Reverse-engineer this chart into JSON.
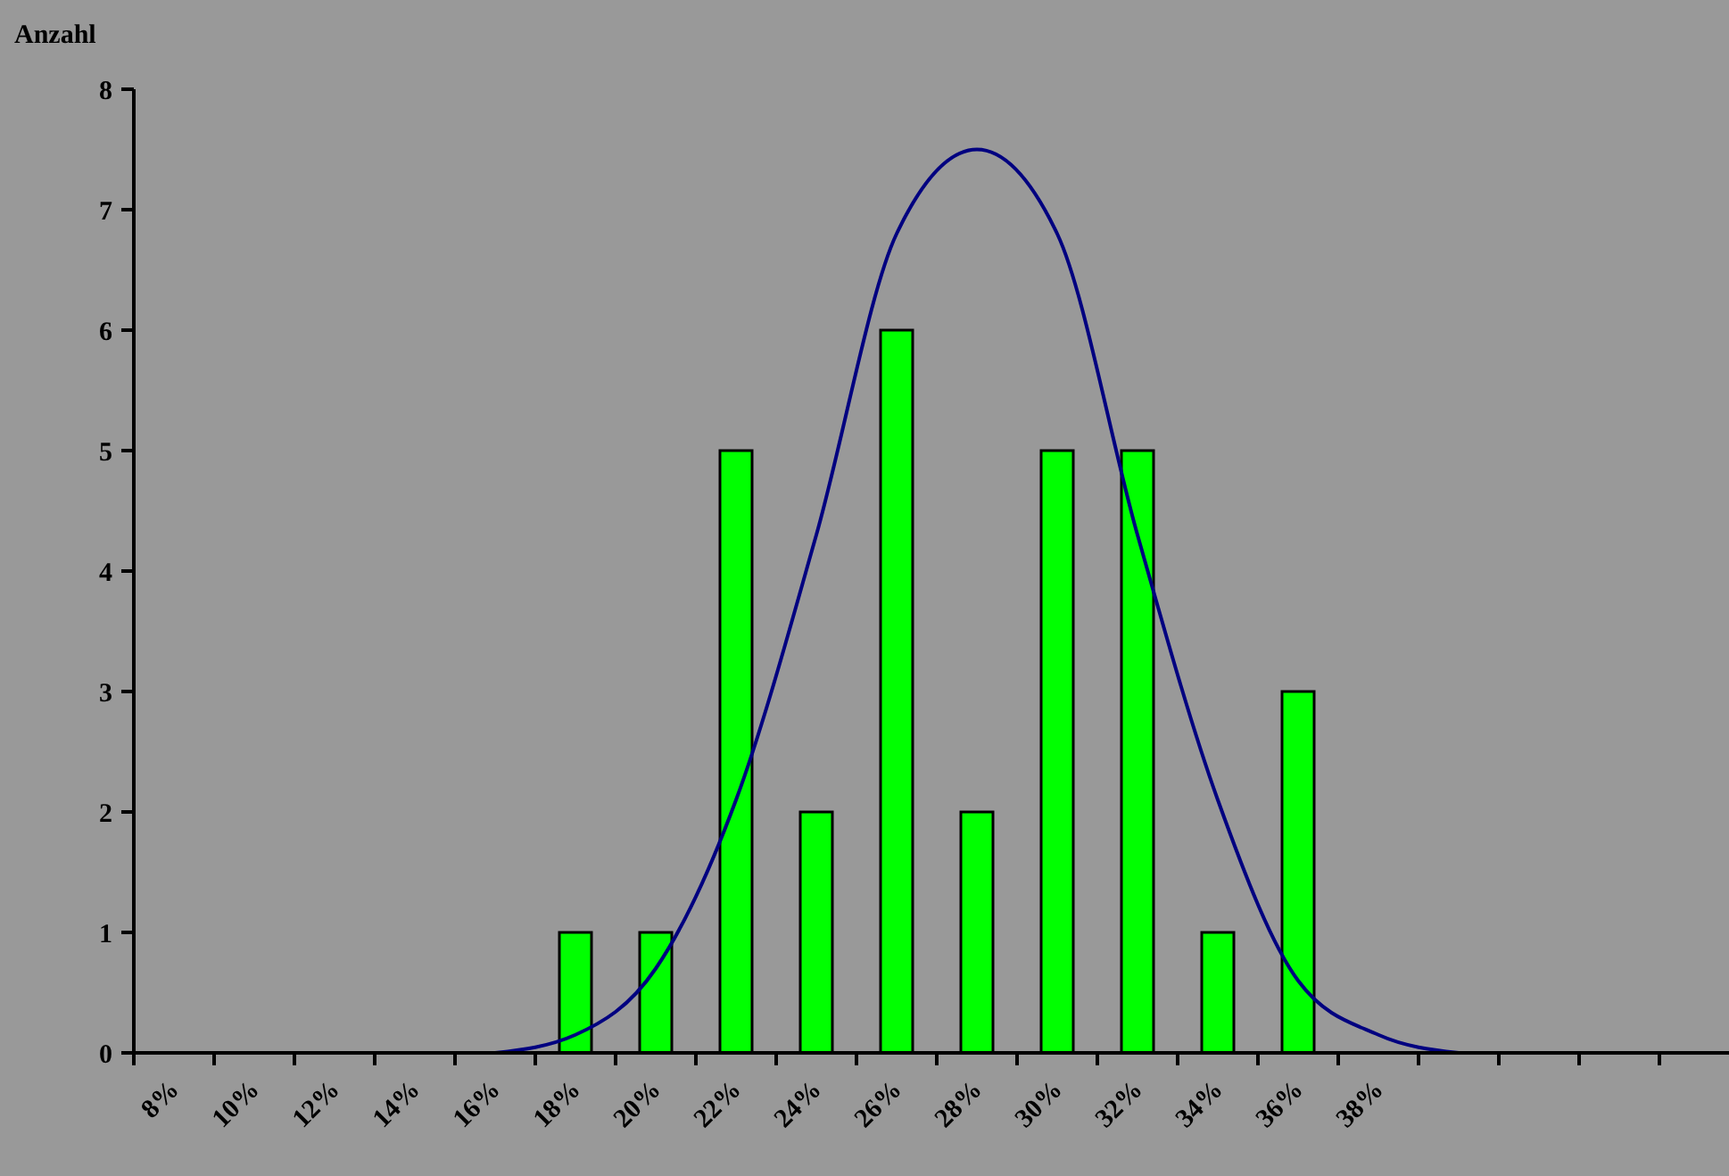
{
  "chart_data": {
    "type": "bar",
    "ylabel": "Anzahl",
    "categories": [
      "8%",
      "10%",
      "12%",
      "14%",
      "16%",
      "18%",
      "20%",
      "22%",
      "24%",
      "26%",
      "28%",
      "30%",
      "32%",
      "34%",
      "36%",
      "38%",
      null,
      null,
      null,
      null
    ],
    "series": [
      {
        "color": "#00ff00",
        "values": [
          0,
          0,
          0,
          0,
          0,
          1,
          1,
          5,
          2,
          6,
          2,
          5,
          5,
          1,
          3,
          0,
          null,
          null,
          null,
          null
        ]
      },
      {
        "type": "line",
        "color": "#000080",
        "values": [
          null,
          null,
          null,
          null,
          0,
          0.15,
          0.7,
          2.1,
          4.3,
          6.8,
          7.5,
          6.8,
          4.3,
          2.1,
          0.6,
          0.15,
          0,
          null,
          null,
          null
        ]
      }
    ],
    "ylim": [
      0,
      8
    ],
    "yticks": [
      0,
      1,
      2,
      3,
      4,
      5,
      6,
      7,
      8
    ],
    "grid": false,
    "marker": "none",
    "line_style": "solid"
  }
}
